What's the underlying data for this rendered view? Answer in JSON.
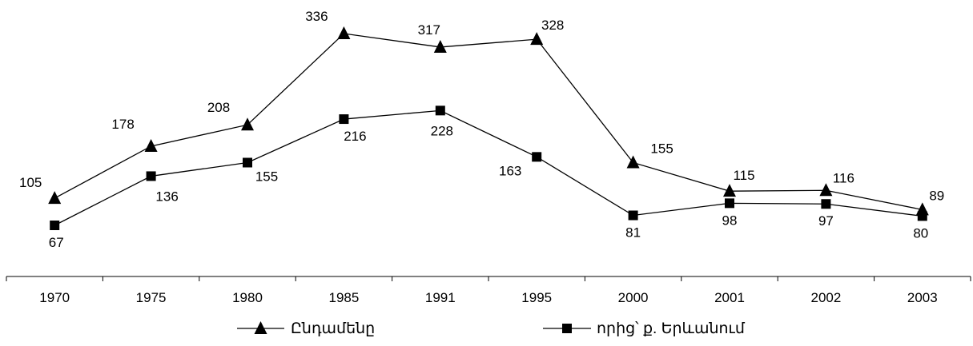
{
  "chart_data": {
    "type": "line",
    "categories": [
      "1970",
      "1975",
      "1980",
      "1985",
      "1991",
      "1995",
      "2000",
      "2001",
      "2002",
      "2003"
    ],
    "series": [
      {
        "name": "Ընդամենը",
        "marker": "triangle",
        "values": [
          105,
          178,
          208,
          336,
          317,
          328,
          155,
          115,
          116,
          89
        ]
      },
      {
        "name": "որից՝ ք. Երևանում",
        "marker": "square",
        "values": [
          67,
          136,
          155,
          216,
          228,
          163,
          81,
          98,
          97,
          80
        ]
      }
    ],
    "title": "",
    "xlabel": "",
    "ylabel": "",
    "ylim": [
      0,
      336
    ],
    "grid": false,
    "legend": "bottom",
    "colors": {
      "line": "#000000",
      "marker": "#000000"
    }
  }
}
